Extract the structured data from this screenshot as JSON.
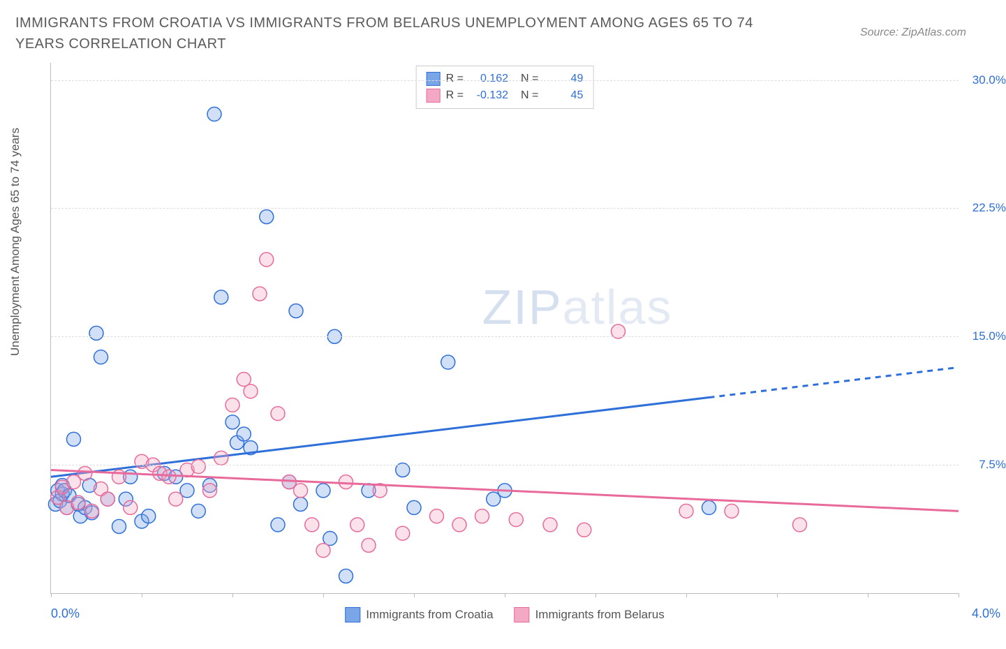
{
  "title": "IMMIGRANTS FROM CROATIA VS IMMIGRANTS FROM BELARUS UNEMPLOYMENT AMONG AGES 65 TO 74 YEARS CORRELATION CHART",
  "source": "Source: ZipAtlas.com",
  "ylabel": "Unemployment Among Ages 65 to 74 years",
  "watermark_a": "ZIP",
  "watermark_b": "atlas",
  "chart": {
    "type": "scatter",
    "background_color": "#ffffff",
    "grid_color": "#dddddd",
    "axis_color": "#bbbbbb",
    "xlim": [
      0.0,
      4.0
    ],
    "ylim": [
      0.0,
      31.0
    ],
    "xtick_positions": [
      0.0,
      0.4,
      0.8,
      1.2,
      1.6,
      2.0,
      2.4,
      2.8,
      3.2,
      3.6,
      4.0
    ],
    "ytick_positions": [
      7.5,
      15.0,
      22.5,
      30.0
    ],
    "ytick_labels": [
      "7.5%",
      "15.0%",
      "22.5%",
      "30.0%"
    ],
    "xaxis_left_label": "0.0%",
    "xaxis_right_label": "4.0%",
    "marker_radius": 10,
    "marker_stroke_width": 1.5,
    "marker_fill_opacity": 0.35,
    "series": [
      {
        "name": "Immigrants from Croatia",
        "color_stroke": "#2e6fd9",
        "color_fill": "#7aa6e8",
        "R": "0.162",
        "N": "49",
        "trend": {
          "y_at_xmin": 6.8,
          "y_at_xmax": 13.2,
          "solid_until_x": 2.9
        },
        "points": [
          [
            0.02,
            5.2
          ],
          [
            0.03,
            6.0
          ],
          [
            0.04,
            5.4
          ],
          [
            0.05,
            5.8
          ],
          [
            0.05,
            6.3
          ],
          [
            0.06,
            6.0
          ],
          [
            0.07,
            5.0
          ],
          [
            0.08,
            5.7
          ],
          [
            0.1,
            9.0
          ],
          [
            0.12,
            5.2
          ],
          [
            0.13,
            4.5
          ],
          [
            0.15,
            5.0
          ],
          [
            0.17,
            6.3
          ],
          [
            0.18,
            4.7
          ],
          [
            0.2,
            15.2
          ],
          [
            0.22,
            13.8
          ],
          [
            0.25,
            5.5
          ],
          [
            0.3,
            3.9
          ],
          [
            0.33,
            5.5
          ],
          [
            0.35,
            6.8
          ],
          [
            0.4,
            4.2
          ],
          [
            0.43,
            4.5
          ],
          [
            0.5,
            7.0
          ],
          [
            0.55,
            6.8
          ],
          [
            0.6,
            6.0
          ],
          [
            0.65,
            4.8
          ],
          [
            0.7,
            6.3
          ],
          [
            0.72,
            28.0
          ],
          [
            0.75,
            17.3
          ],
          [
            0.8,
            10.0
          ],
          [
            0.82,
            8.8
          ],
          [
            0.85,
            9.3
          ],
          [
            0.88,
            8.5
          ],
          [
            0.95,
            22.0
          ],
          [
            1.0,
            4.0
          ],
          [
            1.05,
            6.5
          ],
          [
            1.08,
            16.5
          ],
          [
            1.1,
            5.2
          ],
          [
            1.2,
            6.0
          ],
          [
            1.23,
            3.2
          ],
          [
            1.25,
            15.0
          ],
          [
            1.3,
            1.0
          ],
          [
            1.4,
            6.0
          ],
          [
            1.55,
            7.2
          ],
          [
            1.6,
            5.0
          ],
          [
            1.75,
            13.5
          ],
          [
            1.95,
            5.5
          ],
          [
            2.0,
            6.0
          ],
          [
            2.9,
            5.0
          ]
        ]
      },
      {
        "name": "Immigrants from Belarus",
        "color_stroke": "#e86a9a",
        "color_fill": "#f3a9c3",
        "R": "-0.132",
        "N": "45",
        "trend": {
          "y_at_xmin": 7.2,
          "y_at_xmax": 4.8,
          "solid_until_x": 4.0
        },
        "points": [
          [
            0.03,
            5.6
          ],
          [
            0.05,
            6.2
          ],
          [
            0.07,
            5.0
          ],
          [
            0.1,
            6.5
          ],
          [
            0.12,
            5.3
          ],
          [
            0.15,
            7.0
          ],
          [
            0.18,
            4.8
          ],
          [
            0.22,
            6.1
          ],
          [
            0.25,
            5.5
          ],
          [
            0.3,
            6.8
          ],
          [
            0.35,
            5.0
          ],
          [
            0.4,
            7.7
          ],
          [
            0.45,
            7.5
          ],
          [
            0.48,
            7.0
          ],
          [
            0.52,
            6.8
          ],
          [
            0.55,
            5.5
          ],
          [
            0.6,
            7.2
          ],
          [
            0.65,
            7.4
          ],
          [
            0.7,
            6.0
          ],
          [
            0.75,
            7.9
          ],
          [
            0.8,
            11.0
          ],
          [
            0.85,
            12.5
          ],
          [
            0.88,
            11.8
          ],
          [
            0.92,
            17.5
          ],
          [
            0.95,
            19.5
          ],
          [
            1.0,
            10.5
          ],
          [
            1.05,
            6.5
          ],
          [
            1.1,
            6.0
          ],
          [
            1.15,
            4.0
          ],
          [
            1.2,
            2.5
          ],
          [
            1.3,
            6.5
          ],
          [
            1.35,
            4.0
          ],
          [
            1.4,
            2.8
          ],
          [
            1.45,
            6.0
          ],
          [
            1.55,
            3.5
          ],
          [
            1.7,
            4.5
          ],
          [
            1.8,
            4.0
          ],
          [
            1.9,
            4.5
          ],
          [
            2.05,
            4.3
          ],
          [
            2.2,
            4.0
          ],
          [
            2.35,
            3.7
          ],
          [
            2.5,
            15.3
          ],
          [
            2.8,
            4.8
          ],
          [
            3.0,
            4.8
          ],
          [
            3.3,
            4.0
          ]
        ]
      }
    ],
    "bottom_legend": [
      "Immigrants from Croatia",
      "Immigrants from Belarus"
    ],
    "top_legend_rows": [
      {
        "swatch_fill": "#7aa6e8",
        "swatch_stroke": "#2e6fd9",
        "R_label": "R =",
        "R": "0.162",
        "N_label": "N =",
        "N": "49"
      },
      {
        "swatch_fill": "#f3a9c3",
        "swatch_stroke": "#e86a9a",
        "R_label": "R =",
        "R": "-0.132",
        "N_label": "N =",
        "N": "45"
      }
    ]
  }
}
